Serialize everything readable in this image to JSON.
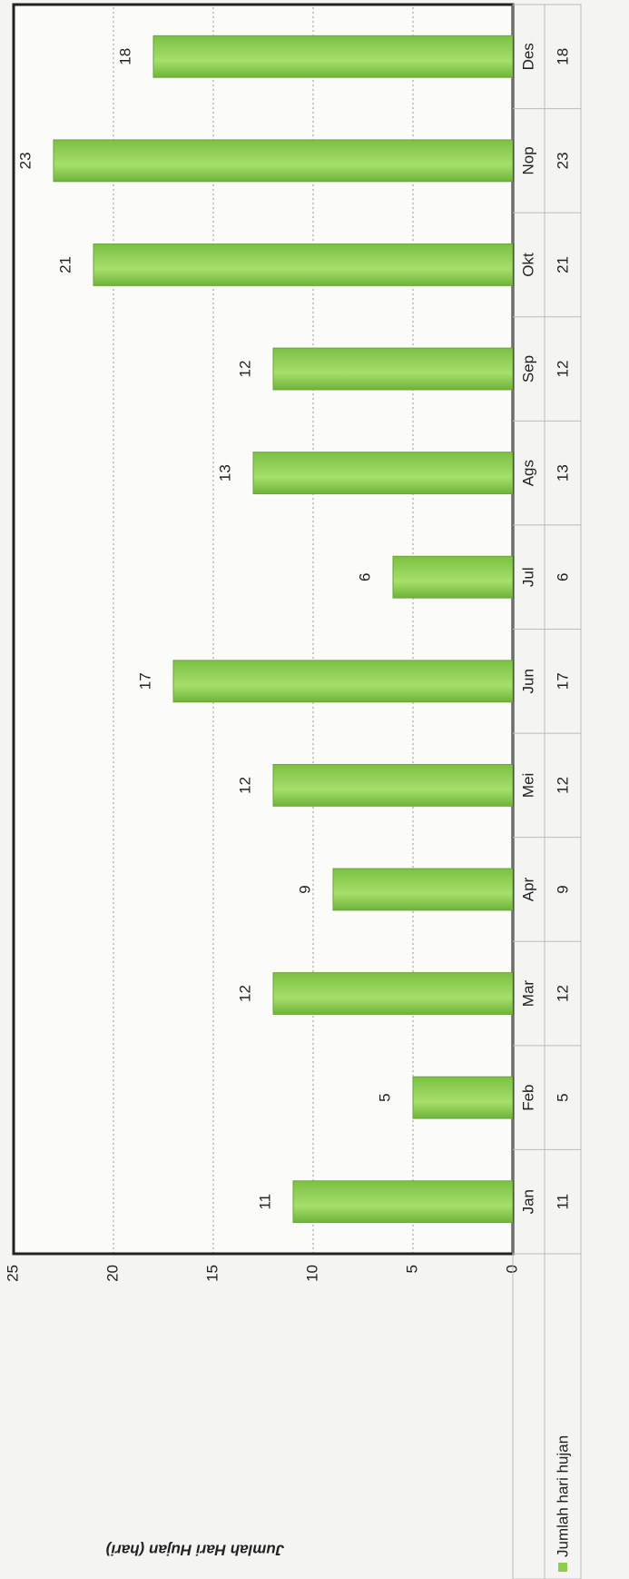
{
  "chart_data": {
    "type": "bar",
    "y_label": "Jumlah Hari Hujan (hari)",
    "categories": [
      "Jan",
      "Feb",
      "Mar",
      "Apr",
      "Mei",
      "Jun",
      "Jul",
      "Ags",
      "Sep",
      "Okt",
      "Nop",
      "Des"
    ],
    "series": [
      {
        "name": "Jumlah hari hujan",
        "color": "#8ccf4e",
        "values": [
          11,
          5,
          12,
          9,
          12,
          17,
          6,
          13,
          12,
          21,
          23,
          18
        ]
      }
    ],
    "ylim": [
      0,
      25
    ],
    "yticks": [
      0,
      5,
      10,
      15,
      20,
      25
    ],
    "grid": true
  }
}
